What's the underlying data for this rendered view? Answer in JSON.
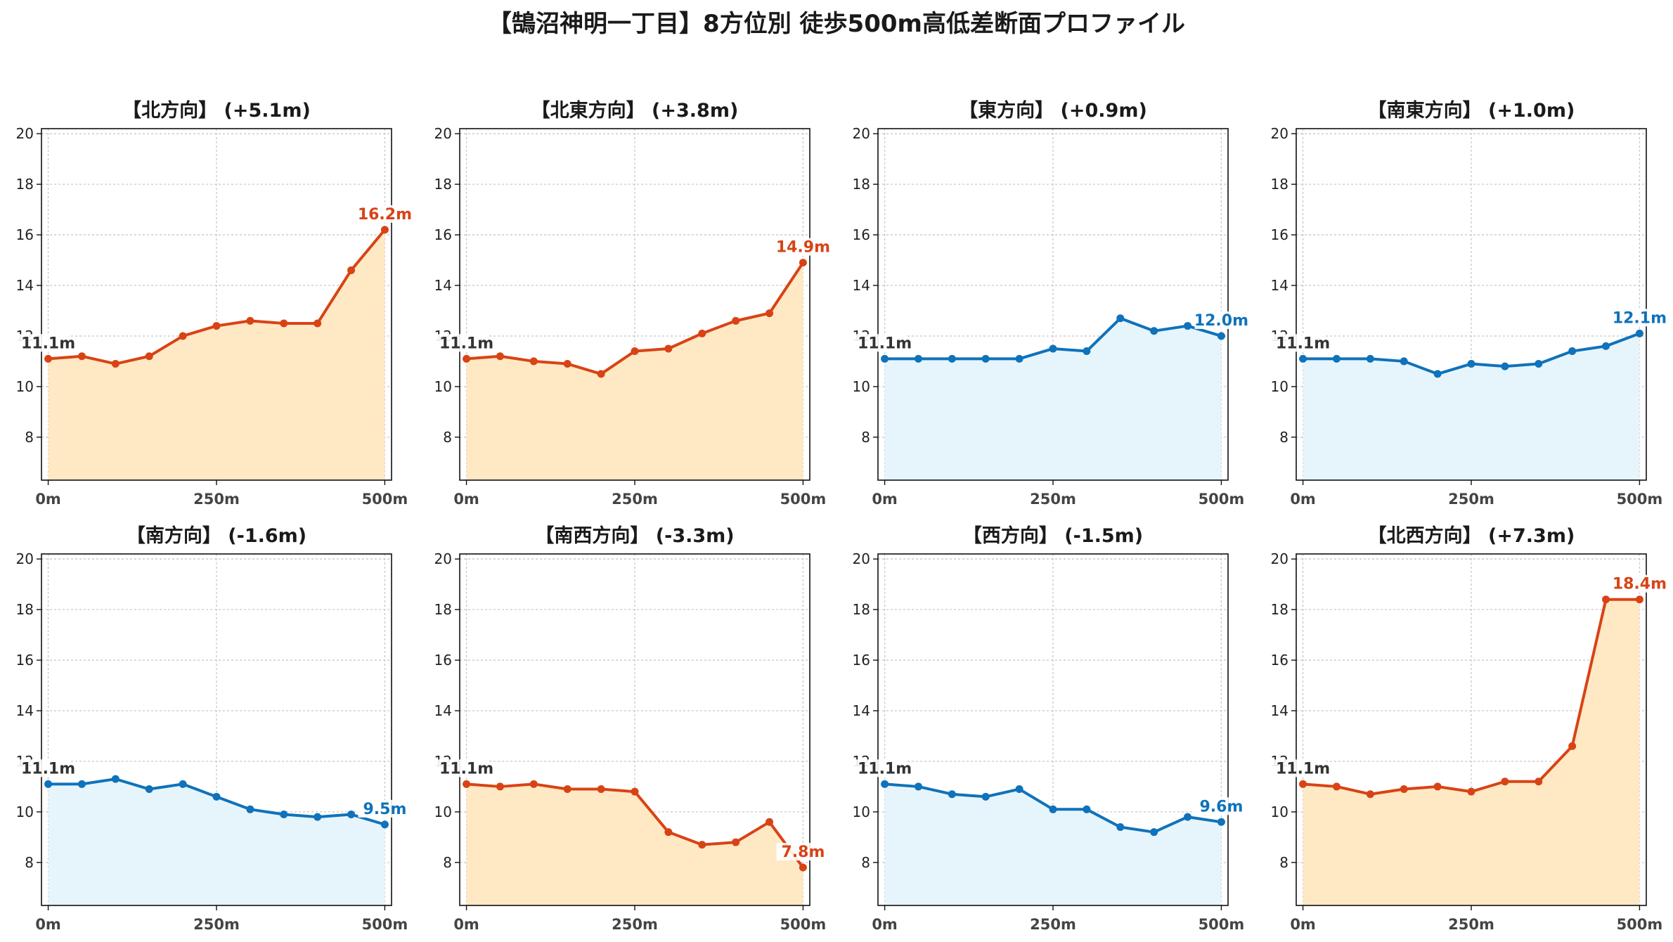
{
  "title": "【鵠沼神明一丁目】8方位別 徒歩500m高低差断面プロファイル",
  "colors": {
    "up_line": "#d84315",
    "up_fill": "#ffe8c4",
    "down_line": "#0f72ba",
    "down_fill": "#e6f5fc",
    "start_label": "#333333"
  },
  "chart_data": [
    {
      "type": "area",
      "title": "【北方向】 (+5.1m)",
      "trend": "up",
      "x": [
        0,
        50,
        100,
        150,
        200,
        250,
        300,
        350,
        400,
        450,
        500
      ],
      "values": [
        11.1,
        11.2,
        10.9,
        11.2,
        12.0,
        12.4,
        12.6,
        12.5,
        12.5,
        14.6,
        16.2
      ],
      "start_label": "11.1m",
      "end_label": "16.2m",
      "xticks": [
        "0m",
        "250m",
        "500m"
      ],
      "yticks": [
        8,
        10,
        12,
        14,
        16,
        18,
        20
      ],
      "ylim": [
        6.3,
        20.2
      ],
      "xlim": [
        -10,
        510
      ],
      "grid": true
    },
    {
      "type": "area",
      "title": "【北東方向】 (+3.8m)",
      "trend": "up",
      "x": [
        0,
        50,
        100,
        150,
        200,
        250,
        300,
        350,
        400,
        450,
        500
      ],
      "values": [
        11.1,
        11.2,
        11.0,
        10.9,
        10.5,
        11.4,
        11.5,
        12.1,
        12.6,
        12.9,
        14.9
      ],
      "start_label": "11.1m",
      "end_label": "14.9m",
      "xticks": [
        "0m",
        "250m",
        "500m"
      ],
      "yticks": [
        8,
        10,
        12,
        14,
        16,
        18,
        20
      ],
      "ylim": [
        6.3,
        20.2
      ],
      "xlim": [
        -10,
        510
      ],
      "grid": true
    },
    {
      "type": "area",
      "title": "【東方向】 (+0.9m)",
      "trend": "down",
      "x": [
        0,
        50,
        100,
        150,
        200,
        250,
        300,
        350,
        400,
        450,
        500
      ],
      "values": [
        11.1,
        11.1,
        11.1,
        11.1,
        11.1,
        11.5,
        11.4,
        12.7,
        12.2,
        12.4,
        12.0
      ],
      "start_label": "11.1m",
      "end_label": "12.0m",
      "xticks": [
        "0m",
        "250m",
        "500m"
      ],
      "yticks": [
        8,
        10,
        12,
        14,
        16,
        18,
        20
      ],
      "ylim": [
        6.3,
        20.2
      ],
      "xlim": [
        -10,
        510
      ],
      "grid": true
    },
    {
      "type": "area",
      "title": "【南東方向】 (+1.0m)",
      "trend": "down",
      "x": [
        0,
        50,
        100,
        150,
        200,
        250,
        300,
        350,
        400,
        450,
        500
      ],
      "values": [
        11.1,
        11.1,
        11.1,
        11.0,
        10.5,
        10.9,
        10.8,
        10.9,
        11.4,
        11.6,
        12.1
      ],
      "start_label": "11.1m",
      "end_label": "12.1m",
      "xticks": [
        "0m",
        "250m",
        "500m"
      ],
      "yticks": [
        8,
        10,
        12,
        14,
        16,
        18,
        20
      ],
      "ylim": [
        6.3,
        20.2
      ],
      "xlim": [
        -10,
        510
      ],
      "grid": true
    },
    {
      "type": "area",
      "title": "【南方向】 (-1.6m)",
      "trend": "down",
      "x": [
        0,
        50,
        100,
        150,
        200,
        250,
        300,
        350,
        400,
        450,
        500
      ],
      "values": [
        11.1,
        11.1,
        11.3,
        10.9,
        11.1,
        10.6,
        10.1,
        9.9,
        9.8,
        9.9,
        9.5
      ],
      "start_label": "11.1m",
      "end_label": "9.5m",
      "xticks": [
        "0m",
        "250m",
        "500m"
      ],
      "yticks": [
        8,
        10,
        12,
        14,
        16,
        18,
        20
      ],
      "ylim": [
        6.3,
        20.2
      ],
      "xlim": [
        -10,
        510
      ],
      "grid": true
    },
    {
      "type": "area",
      "title": "【南西方向】 (-3.3m)",
      "trend": "up",
      "x": [
        0,
        50,
        100,
        150,
        200,
        250,
        300,
        350,
        400,
        450,
        500
      ],
      "values": [
        11.1,
        11.0,
        11.1,
        10.9,
        10.9,
        10.8,
        9.2,
        8.7,
        8.8,
        9.6,
        7.8
      ],
      "start_label": "11.1m",
      "end_label": "7.8m",
      "xticks": [
        "0m",
        "250m",
        "500m"
      ],
      "yticks": [
        8,
        10,
        12,
        14,
        16,
        18,
        20
      ],
      "ylim": [
        6.3,
        20.2
      ],
      "xlim": [
        -10,
        510
      ],
      "grid": true
    },
    {
      "type": "area",
      "title": "【西方向】 (-1.5m)",
      "trend": "down",
      "x": [
        0,
        50,
        100,
        150,
        200,
        250,
        300,
        350,
        400,
        450,
        500
      ],
      "values": [
        11.1,
        11.0,
        10.7,
        10.6,
        10.9,
        10.1,
        10.1,
        9.4,
        9.2,
        9.8,
        9.6
      ],
      "start_label": "11.1m",
      "end_label": "9.6m",
      "xticks": [
        "0m",
        "250m",
        "500m"
      ],
      "yticks": [
        8,
        10,
        12,
        14,
        16,
        18,
        20
      ],
      "ylim": [
        6.3,
        20.2
      ],
      "xlim": [
        -10,
        510
      ],
      "grid": true
    },
    {
      "type": "area",
      "title": "【北西方向】 (+7.3m)",
      "trend": "up",
      "x": [
        0,
        50,
        100,
        150,
        200,
        250,
        300,
        350,
        400,
        450,
        500
      ],
      "values": [
        11.1,
        11.0,
        10.7,
        10.9,
        11.0,
        10.8,
        11.2,
        11.2,
        12.6,
        18.4,
        18.4
      ],
      "start_label": "11.1m",
      "end_label": "18.4m",
      "xticks": [
        "0m",
        "250m",
        "500m"
      ],
      "yticks": [
        8,
        10,
        12,
        14,
        16,
        18,
        20
      ],
      "ylim": [
        6.3,
        20.2
      ],
      "xlim": [
        -10,
        510
      ],
      "grid": true
    }
  ]
}
